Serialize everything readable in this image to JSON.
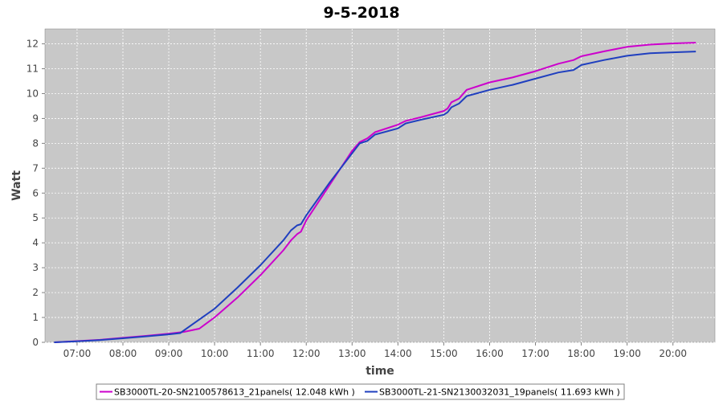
{
  "chart_data": {
    "type": "line",
    "title": "9-5-2018",
    "xlabel": "time",
    "ylabel": "Watt",
    "grid": true,
    "legend_position": "bottom",
    "xlim": [
      "06:18",
      "20:55"
    ],
    "ylim": [
      0,
      12.6
    ],
    "x_ticks": [
      "07:00",
      "08:00",
      "09:00",
      "10:00",
      "11:00",
      "12:00",
      "13:00",
      "14:00",
      "15:00",
      "16:00",
      "17:00",
      "18:00",
      "19:00",
      "20:00"
    ],
    "y_ticks": [
      "0",
      "1",
      "2",
      "3",
      "4",
      "5",
      "6",
      "7",
      "8",
      "9",
      "10",
      "11",
      "12"
    ],
    "background_color": "#c8c8c8",
    "series": [
      {
        "name": "SB3000TL-20-SN2100578613_21panels( 12.048 kWh )",
        "color": "#cc00cc",
        "points": [
          [
            "06:30",
            0.0
          ],
          [
            "07:00",
            0.05
          ],
          [
            "07:30",
            0.1
          ],
          [
            "08:00",
            0.18
          ],
          [
            "08:30",
            0.26
          ],
          [
            "09:00",
            0.35
          ],
          [
            "09:20",
            0.42
          ],
          [
            "09:40",
            0.55
          ],
          [
            "10:00",
            1.0
          ],
          [
            "10:30",
            1.8
          ],
          [
            "11:00",
            2.7
          ],
          [
            "11:30",
            3.7
          ],
          [
            "11:40",
            4.1
          ],
          [
            "11:48",
            4.35
          ],
          [
            "11:53",
            4.45
          ],
          [
            "12:00",
            4.9
          ],
          [
            "12:30",
            6.3
          ],
          [
            "13:00",
            7.7
          ],
          [
            "13:10",
            8.05
          ],
          [
            "13:20",
            8.2
          ],
          [
            "13:30",
            8.45
          ],
          [
            "14:00",
            8.75
          ],
          [
            "14:10",
            8.9
          ],
          [
            "14:30",
            9.05
          ],
          [
            "15:00",
            9.3
          ],
          [
            "15:05",
            9.4
          ],
          [
            "15:10",
            9.65
          ],
          [
            "15:20",
            9.8
          ],
          [
            "15:30",
            10.15
          ],
          [
            "16:00",
            10.45
          ],
          [
            "16:30",
            10.65
          ],
          [
            "17:00",
            10.9
          ],
          [
            "17:30",
            11.2
          ],
          [
            "17:50",
            11.35
          ],
          [
            "18:00",
            11.5
          ],
          [
            "18:30",
            11.7
          ],
          [
            "19:00",
            11.88
          ],
          [
            "19:30",
            11.97
          ],
          [
            "20:00",
            12.02
          ],
          [
            "20:30",
            12.048
          ]
        ]
      },
      {
        "name": "SB3000TL-21-SN2130032031_19panels( 11.693 kWh )",
        "color": "#1f3fbf",
        "points": [
          [
            "06:30",
            0.0
          ],
          [
            "07:00",
            0.04
          ],
          [
            "07:30",
            0.09
          ],
          [
            "08:00",
            0.16
          ],
          [
            "08:30",
            0.24
          ],
          [
            "09:00",
            0.32
          ],
          [
            "09:15",
            0.37
          ],
          [
            "09:30",
            0.7
          ],
          [
            "10:00",
            1.35
          ],
          [
            "10:30",
            2.2
          ],
          [
            "11:00",
            3.1
          ],
          [
            "11:30",
            4.1
          ],
          [
            "11:40",
            4.5
          ],
          [
            "11:48",
            4.7
          ],
          [
            "11:53",
            4.75
          ],
          [
            "12:00",
            5.1
          ],
          [
            "12:30",
            6.4
          ],
          [
            "13:00",
            7.6
          ],
          [
            "13:10",
            8.0
          ],
          [
            "13:20",
            8.1
          ],
          [
            "13:30",
            8.35
          ],
          [
            "14:00",
            8.6
          ],
          [
            "14:10",
            8.8
          ],
          [
            "14:30",
            8.95
          ],
          [
            "15:00",
            9.15
          ],
          [
            "15:05",
            9.25
          ],
          [
            "15:10",
            9.45
          ],
          [
            "15:20",
            9.6
          ],
          [
            "15:30",
            9.9
          ],
          [
            "16:00",
            10.15
          ],
          [
            "16:30",
            10.35
          ],
          [
            "17:00",
            10.6
          ],
          [
            "17:30",
            10.85
          ],
          [
            "17:50",
            10.95
          ],
          [
            "18:00",
            11.15
          ],
          [
            "18:30",
            11.35
          ],
          [
            "19:00",
            11.52
          ],
          [
            "19:30",
            11.62
          ],
          [
            "20:00",
            11.66
          ],
          [
            "20:30",
            11.693
          ]
        ]
      }
    ]
  }
}
